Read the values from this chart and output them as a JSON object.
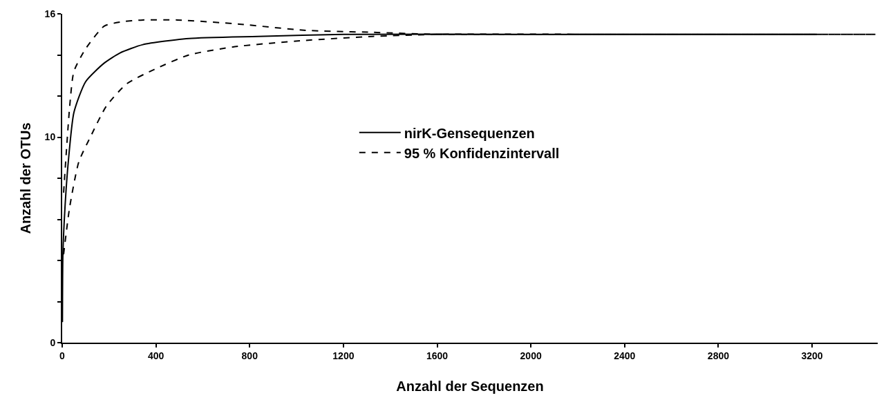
{
  "chart_data": {
    "type": "line",
    "xlabel": "Anzahl der Sequenzen",
    "ylabel": "Anzahl der OTUs",
    "xlim": [
      0,
      3480
    ],
    "xticks": [
      0,
      400,
      800,
      1200,
      1600,
      2000,
      2400,
      2800,
      3200
    ],
    "ylim": [
      0,
      16
    ],
    "yticks": [
      0,
      {
        "value": 2,
        "label": null
      },
      {
        "value": 4,
        "label": null
      },
      {
        "value": 6,
        "label": null
      },
      {
        "value": 8,
        "label": null
      },
      10,
      {
        "value": 12,
        "label": null
      },
      {
        "value": 14,
        "label": null
      },
      16
    ],
    "legend": "center",
    "marker": "none",
    "series": [
      {
        "name": "nirK-Gensequenzen",
        "color": "#000000",
        "line_style": "solid",
        "x": [
          1,
          3,
          12,
          26,
          50,
          100,
          179,
          247,
          344,
          541,
          835,
          1200,
          2000,
          3220
        ],
        "values": [
          1,
          4.3,
          6.6,
          8.8,
          11.2,
          12.7,
          13.6,
          14.1,
          14.5,
          14.8,
          14.9,
          15,
          15,
          15
        ]
      },
      {
        "name": "95 % Konfidenzintervall",
        "color": "#000000",
        "line_style": "dashed",
        "x": [
          6,
          32,
          50,
          100,
          179,
          247,
          344,
          491,
          756,
          1031,
          1325,
          1600,
          2400,
          3470
        ],
        "values": [
          7.3,
          11.5,
          13.2,
          14.3,
          15.4,
          15.6,
          15.7,
          15.7,
          15.5,
          15.2,
          15.1,
          15,
          15,
          15
        ]
      },
      {
        "color": "#000000",
        "line_style": "dashed",
        "x": [
          6,
          32,
          71,
          120,
          188,
          276,
          394,
          541,
          737,
          1031,
          1325,
          1600,
          2400,
          3470
        ],
        "values": [
          4.3,
          6.6,
          8.8,
          10,
          11.5,
          12.6,
          13.3,
          14,
          14.4,
          14.7,
          14.9,
          15,
          15,
          15
        ]
      }
    ]
  }
}
